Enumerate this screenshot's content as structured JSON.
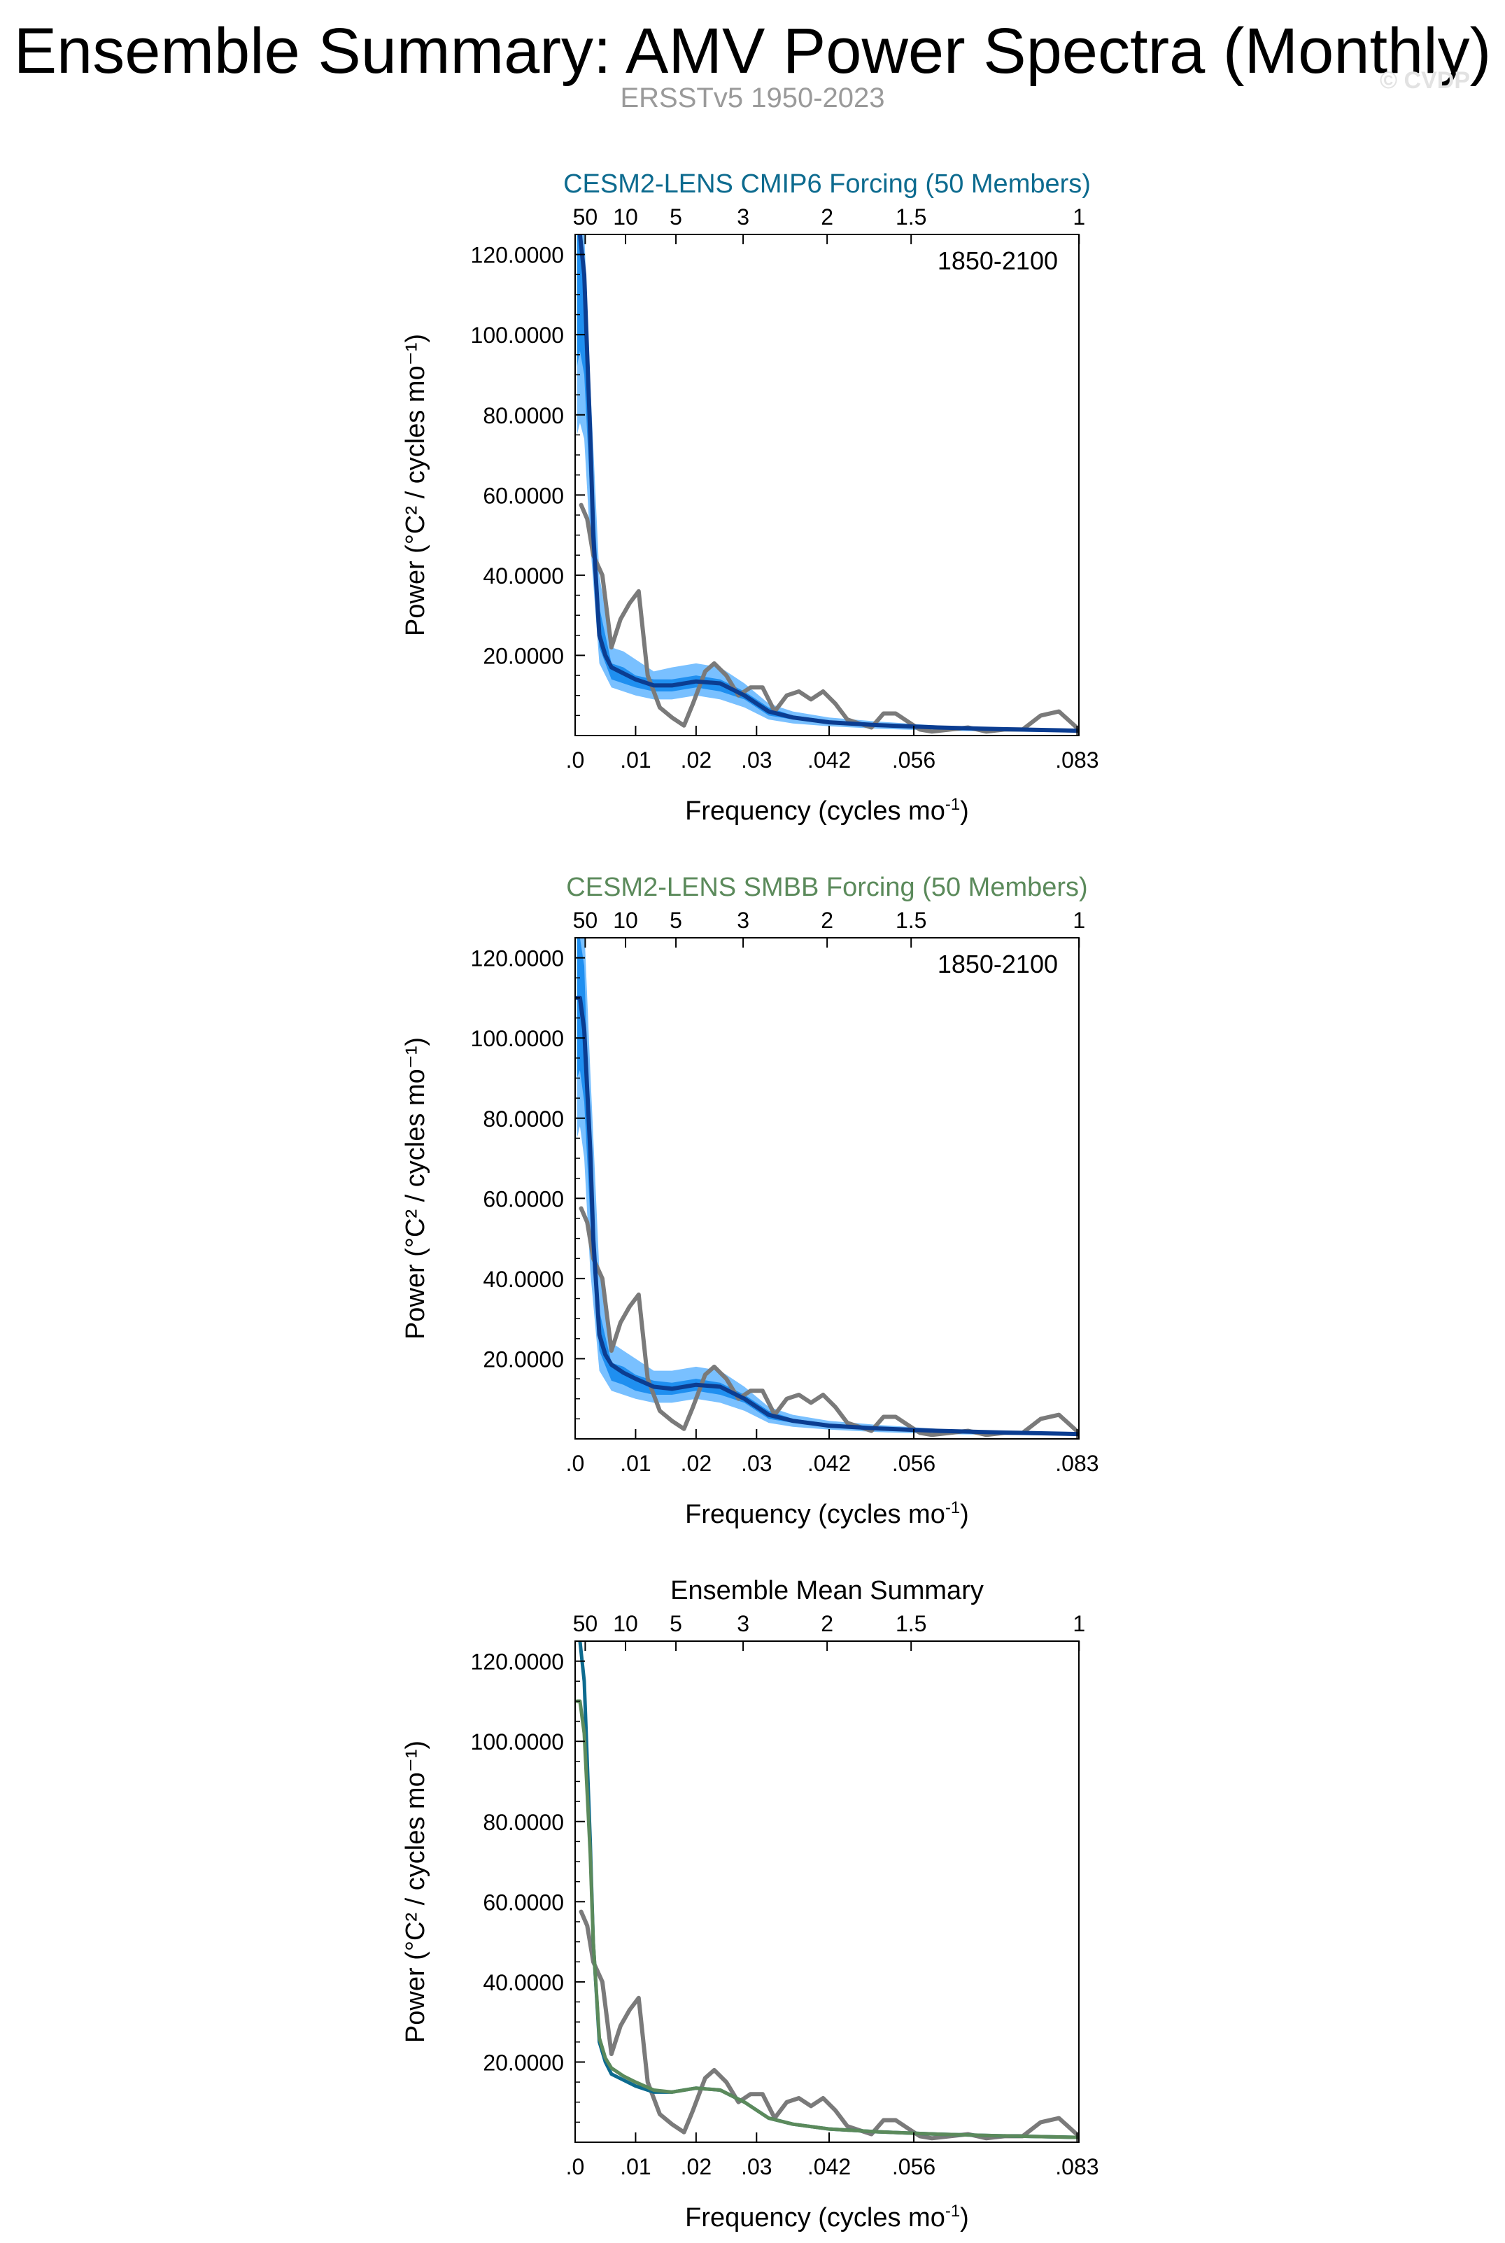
{
  "title": "Ensemble Summary: AMV Power Spectra (Monthly)",
  "subtitle": "ERSSTv5 1950-2023",
  "watermark": "© CVDP",
  "colors": {
    "observed": "#7a7a7a",
    "ensemble_mean": "#0b3d91",
    "band_outer": "#79c0ff",
    "band_inner": "#1f8ff0",
    "cmip6": "#0d6b8f",
    "smbb": "#5b8a5b"
  },
  "chart_data": [
    {
      "type": "line",
      "title": "CESM2-LENS CMIP6 Forcing (50 Members)",
      "title_color": "#0d6b8f",
      "annotation": "1850-2100",
      "xlabel": "Frequency (cycles mo",
      "xlabel_sup": "-1",
      "xlabel_end": ")",
      "ylabel": "Power (°C² / cycles mo⁻¹)",
      "xlim": [
        0,
        0.0833
      ],
      "ylim": [
        0,
        125
      ],
      "x_ticks": [
        0,
        0.01,
        0.02,
        0.03,
        0.042,
        0.056,
        0.083
      ],
      "x_tick_labels": [
        ".0",
        ".01",
        ".02",
        ".03",
        ".042",
        ".056",
        ".083"
      ],
      "y_ticks": [
        20,
        40,
        60,
        80,
        100,
        120
      ],
      "y_tick_labels": [
        "20.0000",
        "40.0000",
        "60.0000",
        "80.0000",
        "100.0000",
        "120.0000"
      ],
      "period_ticks": [
        50,
        10,
        5,
        3,
        2,
        1.5,
        1
      ],
      "period_tick_labels": [
        "50",
        "10",
        "5",
        "3",
        "2",
        "1.5",
        "1"
      ],
      "series": [
        {
          "name": "ensemble spread (outer)",
          "kind": "band",
          "x": [
            0.0003,
            0.0008,
            0.0015,
            0.0025,
            0.004,
            0.006,
            0.008,
            0.01,
            0.013,
            0.016,
            0.02,
            0.024,
            0.028,
            0.032,
            0.036,
            0.042,
            0.05,
            0.06,
            0.07,
            0.0833
          ],
          "upper": [
            130,
            130,
            126,
            88,
            40,
            22,
            21,
            19,
            16,
            17,
            18,
            17,
            13,
            8,
            6,
            4.5,
            3.5,
            2.5,
            2,
            1.5
          ],
          "lower": [
            75,
            78,
            74,
            48,
            18,
            12,
            11,
            10,
            9,
            9,
            10,
            9,
            7,
            4,
            3,
            2.3,
            1.7,
            1.2,
            1,
            0.8
          ]
        },
        {
          "name": "ensemble spread (inner)",
          "kind": "band",
          "x": [
            0.0003,
            0.0008,
            0.0015,
            0.0025,
            0.004,
            0.006,
            0.008,
            0.01,
            0.013,
            0.016,
            0.02,
            0.024,
            0.028,
            0.032,
            0.036,
            0.042,
            0.05,
            0.06,
            0.07,
            0.0833
          ],
          "upper": [
            128,
            128,
            120,
            78,
            32,
            18,
            17,
            15,
            14,
            14,
            15,
            14,
            11,
            7,
            5,
            3.8,
            3,
            2.2,
            1.8,
            1.3
          ],
          "lower": [
            92,
            96,
            90,
            60,
            22,
            14,
            13,
            12,
            11,
            11,
            12,
            11,
            9,
            5,
            4,
            3,
            2.2,
            1.6,
            1.3,
            1.0
          ]
        },
        {
          "name": "ensemble mean",
          "kind": "line",
          "x": [
            0.0003,
            0.0008,
            0.0015,
            0.0025,
            0.003,
            0.004,
            0.005,
            0.006,
            0.008,
            0.01,
            0.013,
            0.016,
            0.02,
            0.024,
            0.028,
            0.032,
            0.036,
            0.042,
            0.05,
            0.06,
            0.07,
            0.0833
          ],
          "y": [
            126,
            125,
            115,
            75,
            50,
            25,
            20,
            17,
            15.5,
            14,
            12.5,
            12.5,
            13.5,
            13,
            10,
            6,
            4.5,
            3.3,
            2.6,
            2,
            1.6,
            1.2
          ]
        },
        {
          "name": "ERSSTv5 observed",
          "kind": "obs",
          "x": [
            0.001,
            0.002,
            0.003,
            0.0045,
            0.006,
            0.0075,
            0.009,
            0.0105,
            0.012,
            0.014,
            0.016,
            0.018,
            0.0195,
            0.0215,
            0.023,
            0.025,
            0.027,
            0.029,
            0.031,
            0.033,
            0.035,
            0.037,
            0.039,
            0.041,
            0.043,
            0.045,
            0.047,
            0.049,
            0.051,
            0.053,
            0.055,
            0.057,
            0.059,
            0.062,
            0.065,
            0.068,
            0.071,
            0.074,
            0.077,
            0.08,
            0.0833
          ],
          "y": [
            57.5,
            54,
            45,
            40,
            22,
            29,
            33,
            36,
            15,
            7,
            4.5,
            2.5,
            8,
            16,
            18,
            15,
            10,
            12,
            12,
            6,
            10,
            11,
            9,
            11,
            8,
            4,
            3,
            2,
            5.5,
            5.5,
            3.5,
            1.5,
            1,
            1.5,
            2,
            1,
            1.5,
            1.5,
            5,
            6,
            1.5
          ]
        }
      ]
    },
    {
      "type": "line",
      "title": "CESM2-LENS SMBB Forcing (50 Members)",
      "title_color": "#5b8a5b",
      "annotation": "1850-2100",
      "xlabel": "Frequency (cycles mo",
      "xlabel_sup": "-1",
      "xlabel_end": ")",
      "ylabel": "Power (°C² / cycles mo⁻¹)",
      "xlim": [
        0,
        0.0833
      ],
      "ylim": [
        0,
        125
      ],
      "x_ticks": [
        0,
        0.01,
        0.02,
        0.03,
        0.042,
        0.056,
        0.083
      ],
      "x_tick_labels": [
        ".0",
        ".01",
        ".02",
        ".03",
        ".042",
        ".056",
        ".083"
      ],
      "y_ticks": [
        20,
        40,
        60,
        80,
        100,
        120
      ],
      "y_tick_labels": [
        "20.0000",
        "40.0000",
        "60.0000",
        "80.0000",
        "100.0000",
        "120.0000"
      ],
      "period_ticks": [
        50,
        10,
        5,
        3,
        2,
        1.5,
        1
      ],
      "period_tick_labels": [
        "50",
        "10",
        "5",
        "3",
        "2",
        "1.5",
        "1"
      ],
      "series": [
        {
          "name": "ensemble spread (outer)",
          "kind": "band",
          "x": [
            0.0003,
            0.0008,
            0.0015,
            0.0025,
            0.004,
            0.006,
            0.008,
            0.01,
            0.013,
            0.016,
            0.02,
            0.024,
            0.028,
            0.032,
            0.036,
            0.042,
            0.05,
            0.06,
            0.07,
            0.0833
          ],
          "upper": [
            130,
            130,
            128,
            92,
            42,
            24,
            22,
            20,
            17,
            17,
            18,
            17,
            13,
            8,
            6,
            4.5,
            3.5,
            2.5,
            2,
            1.5
          ],
          "lower": [
            75,
            78,
            70,
            42,
            17,
            12,
            11,
            10,
            9,
            9,
            10,
            9,
            7,
            4,
            3,
            2.3,
            1.7,
            1.2,
            1,
            0.8
          ]
        },
        {
          "name": "ensemble spread (inner)",
          "kind": "band",
          "x": [
            0.0003,
            0.0008,
            0.0015,
            0.0025,
            0.004,
            0.006,
            0.008,
            0.01,
            0.013,
            0.016,
            0.02,
            0.024,
            0.028,
            0.032,
            0.036,
            0.042,
            0.05,
            0.06,
            0.07,
            0.0833
          ],
          "upper": [
            125,
            125,
            118,
            72,
            32,
            19,
            18,
            16,
            14.5,
            14,
            15,
            14,
            11,
            7,
            5,
            3.8,
            3,
            2.2,
            1.8,
            1.3
          ],
          "lower": [
            90,
            92,
            84,
            55,
            22,
            14.5,
            13.5,
            12,
            11,
            11,
            12,
            11,
            9,
            5,
            4,
            3,
            2.2,
            1.6,
            1.3,
            1.0
          ]
        },
        {
          "name": "ensemble mean",
          "kind": "line",
          "x": [
            0.0003,
            0.0008,
            0.0015,
            0.0025,
            0.003,
            0.004,
            0.005,
            0.006,
            0.008,
            0.01,
            0.013,
            0.016,
            0.02,
            0.024,
            0.028,
            0.032,
            0.036,
            0.042,
            0.05,
            0.06,
            0.07,
            0.0833
          ],
          "y": [
            110,
            110,
            102,
            72,
            50,
            26,
            21,
            18.5,
            16.5,
            15,
            13,
            12.5,
            13.5,
            13,
            10,
            6,
            4.5,
            3.3,
            2.6,
            2,
            1.6,
            1.2
          ]
        },
        {
          "name": "ERSSTv5 observed",
          "kind": "obs",
          "x": [
            0.001,
            0.002,
            0.003,
            0.0045,
            0.006,
            0.0075,
            0.009,
            0.0105,
            0.012,
            0.014,
            0.016,
            0.018,
            0.0195,
            0.0215,
            0.023,
            0.025,
            0.027,
            0.029,
            0.031,
            0.033,
            0.035,
            0.037,
            0.039,
            0.041,
            0.043,
            0.045,
            0.047,
            0.049,
            0.051,
            0.053,
            0.055,
            0.057,
            0.059,
            0.062,
            0.065,
            0.068,
            0.071,
            0.074,
            0.077,
            0.08,
            0.0833
          ],
          "y": [
            57.5,
            54,
            45,
            40,
            22,
            29,
            33,
            36,
            15,
            7,
            4.5,
            2.5,
            8,
            16,
            18,
            15,
            10,
            12,
            12,
            6,
            10,
            11,
            9,
            11,
            8,
            4,
            3,
            2,
            5.5,
            5.5,
            3.5,
            1.5,
            1,
            1.5,
            2,
            1,
            1.5,
            1.5,
            5,
            6,
            1.5
          ]
        }
      ]
    },
    {
      "type": "line",
      "title": "Ensemble Mean Summary",
      "title_color": "#000000",
      "annotation": "",
      "xlabel": "Frequency (cycles mo",
      "xlabel_sup": "-1",
      "xlabel_end": ")",
      "ylabel": "Power (°C² / cycles mo⁻¹)",
      "xlim": [
        0,
        0.0833
      ],
      "ylim": [
        0,
        125
      ],
      "x_ticks": [
        0,
        0.01,
        0.02,
        0.03,
        0.042,
        0.056,
        0.083
      ],
      "x_tick_labels": [
        ".0",
        ".01",
        ".02",
        ".03",
        ".042",
        ".056",
        ".083"
      ],
      "y_ticks": [
        20,
        40,
        60,
        80,
        100,
        120
      ],
      "y_tick_labels": [
        "20.0000",
        "40.0000",
        "60.0000",
        "80.0000",
        "100.0000",
        "120.0000"
      ],
      "period_ticks": [
        50,
        10,
        5,
        3,
        2,
        1.5,
        1
      ],
      "period_tick_labels": [
        "50",
        "10",
        "5",
        "3",
        "2",
        "1.5",
        "1"
      ],
      "series": [
        {
          "name": "ERSSTv5 observed",
          "kind": "obs",
          "x": [
            0.001,
            0.002,
            0.003,
            0.0045,
            0.006,
            0.0075,
            0.009,
            0.0105,
            0.012,
            0.014,
            0.016,
            0.018,
            0.0195,
            0.0215,
            0.023,
            0.025,
            0.027,
            0.029,
            0.031,
            0.033,
            0.035,
            0.037,
            0.039,
            0.041,
            0.043,
            0.045,
            0.047,
            0.049,
            0.051,
            0.053,
            0.055,
            0.057,
            0.059,
            0.062,
            0.065,
            0.068,
            0.071,
            0.074,
            0.077,
            0.08,
            0.0833
          ],
          "y": [
            57.5,
            54,
            45,
            40,
            22,
            29,
            33,
            36,
            15,
            7,
            4.5,
            2.5,
            8,
            16,
            18,
            15,
            10,
            12,
            12,
            6,
            10,
            11,
            9,
            11,
            8,
            4,
            3,
            2,
            5.5,
            5.5,
            3.5,
            1.5,
            1,
            1.5,
            2,
            1,
            1.5,
            1.5,
            5,
            6,
            1.5
          ]
        },
        {
          "name": "CMIP6 ensemble mean",
          "kind": "cmip6",
          "x": [
            0.0003,
            0.0008,
            0.0015,
            0.0025,
            0.003,
            0.004,
            0.005,
            0.006,
            0.008,
            0.01,
            0.013,
            0.016,
            0.02,
            0.024,
            0.028,
            0.032,
            0.036,
            0.042,
            0.05,
            0.06,
            0.07,
            0.0833
          ],
          "y": [
            126,
            125,
            115,
            75,
            50,
            25,
            20,
            17,
            15.5,
            14,
            12.5,
            12.5,
            13.5,
            13,
            10,
            6,
            4.5,
            3.3,
            2.6,
            2,
            1.6,
            1.2
          ]
        },
        {
          "name": "SMBB ensemble mean",
          "kind": "smbb",
          "x": [
            0.0003,
            0.0008,
            0.0015,
            0.0025,
            0.003,
            0.004,
            0.005,
            0.006,
            0.008,
            0.01,
            0.013,
            0.016,
            0.02,
            0.024,
            0.028,
            0.032,
            0.036,
            0.042,
            0.05,
            0.06,
            0.07,
            0.0833
          ],
          "y": [
            110,
            110,
            102,
            72,
            50,
            26,
            21,
            18.5,
            16.5,
            15,
            13,
            12.5,
            13.5,
            13,
            10,
            6,
            4.5,
            3.3,
            2.6,
            2,
            1.6,
            1.2
          ]
        }
      ]
    }
  ]
}
